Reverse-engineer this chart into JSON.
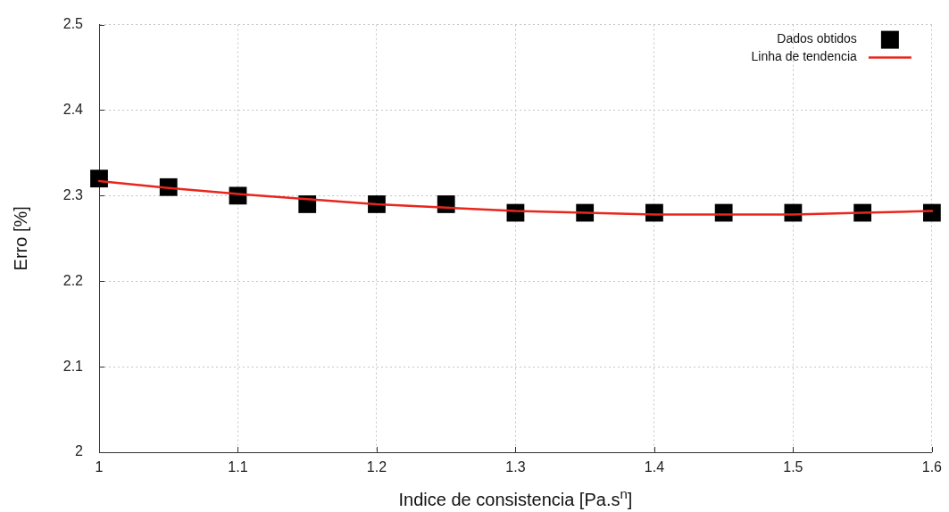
{
  "chart_data": {
    "type": "scatter",
    "xlabel": "Indice de consistencia [Pa.s$^{n}$]",
    "ylabel": "Erro [%]",
    "xlim": [
      1,
      1.6
    ],
    "xticks": [
      1,
      1.1,
      1.2,
      1.3,
      1.4,
      1.5,
      1.6
    ],
    "ylim": [
      2,
      2.5
    ],
    "yticks": [
      2,
      2.1,
      2.2,
      2.3,
      2.4,
      2.5
    ],
    "grid": true,
    "legend": "top right",
    "series": [
      {
        "name": "Dados obtidos",
        "type": "scatter",
        "marker": "square",
        "color": "#000000",
        "x": [
          1,
          1.05,
          1.1,
          1.15,
          1.2,
          1.25,
          1.3,
          1.35,
          1.4,
          1.45,
          1.5,
          1.55,
          1.6
        ],
        "values": [
          2.32,
          2.31,
          2.3,
          2.29,
          2.29,
          2.29,
          2.28,
          2.28,
          2.28,
          2.28,
          2.28,
          2.28,
          2.28
        ]
      },
      {
        "name": "Linha de tendencia",
        "type": "line",
        "marker": "none",
        "line_style": "solid",
        "color": "#e8261c",
        "x": [
          1,
          1.05,
          1.1,
          1.15,
          1.2,
          1.25,
          1.3,
          1.35,
          1.4,
          1.45,
          1.5,
          1.55,
          1.6
        ],
        "values": [
          2.317,
          2.309,
          2.302,
          2.296,
          2.29,
          2.286,
          2.282,
          2.28,
          2.278,
          2.278,
          2.278,
          2.28,
          2.282
        ]
      }
    ]
  }
}
